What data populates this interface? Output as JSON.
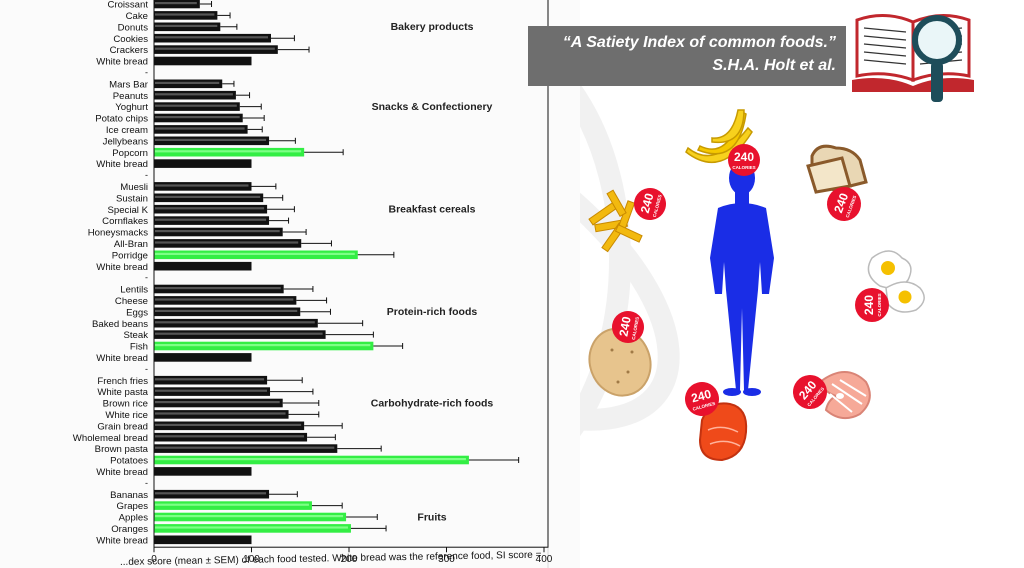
{
  "citation": {
    "title": "“A Satiety Index of common foods.”",
    "authors": "S.H.A. Holt et al."
  },
  "caption_fragment": "...dex score (mean ± SEM) of each food tested. White bread was the reference food, SI score =",
  "calorie_badge": {
    "number": "240",
    "unit": "CALORIES"
  },
  "icons": [
    "book-icon",
    "magnifier-icon",
    "human-silhouette-icon",
    "banana-icon",
    "bread-icon",
    "french-fries-icon",
    "egg-icon",
    "potato-icon",
    "salmon-icon",
    "steak-icon"
  ],
  "colors": {
    "highlight": "#33ee44",
    "bar": "#111111",
    "body": "#1a2de6",
    "badge": "#e8112d",
    "citation_bg": "#6e6e6e"
  },
  "chart_data": {
    "type": "bar",
    "orientation": "horizontal",
    "xlim": [
      0,
      400
    ],
    "xticks": [
      0,
      100,
      200,
      300,
      400
    ],
    "grid": false,
    "groups": [
      {
        "name": "Bakery products",
        "items": [
          {
            "label": "Croissant",
            "value": 47,
            "err": 12
          },
          {
            "label": "Cake",
            "value": 65,
            "err": 13
          },
          {
            "label": "Donuts",
            "value": 68,
            "err": 17
          },
          {
            "label": "Cookies",
            "value": 120,
            "err": 24
          },
          {
            "label": "Crackers",
            "value": 127,
            "err": 32
          },
          {
            "label": "White bread",
            "value": 100,
            "err": 0
          }
        ]
      },
      {
        "name": "Snacks & Confectionery",
        "items": [
          {
            "label": "Mars Bar",
            "value": 70,
            "err": 12
          },
          {
            "label": "Peanuts",
            "value": 84,
            "err": 14
          },
          {
            "label": "Yoghurt",
            "value": 88,
            "err": 22
          },
          {
            "label": "Potato chips",
            "value": 91,
            "err": 22
          },
          {
            "label": "Ice cream",
            "value": 96,
            "err": 15
          },
          {
            "label": "Jellybeans",
            "value": 118,
            "err": 27
          },
          {
            "label": "Popcorn",
            "value": 154,
            "err": 40,
            "highlight": true
          },
          {
            "label": "White bread",
            "value": 100,
            "err": 0
          }
        ]
      },
      {
        "name": "Breakfast cereals",
        "items": [
          {
            "label": "Muesli",
            "value": 100,
            "err": 25
          },
          {
            "label": "Sustain",
            "value": 112,
            "err": 20
          },
          {
            "label": "Special K",
            "value": 116,
            "err": 28
          },
          {
            "label": "Cornflakes",
            "value": 118,
            "err": 20
          },
          {
            "label": "Honeysmacks",
            "value": 132,
            "err": 24
          },
          {
            "label": "All-Bran",
            "value": 151,
            "err": 31
          },
          {
            "label": "Porridge",
            "value": 209,
            "err": 37,
            "highlight": true
          },
          {
            "label": "White bread",
            "value": 100,
            "err": 0
          }
        ]
      },
      {
        "name": "Protein-rich foods",
        "items": [
          {
            "label": "Lentils",
            "value": 133,
            "err": 30
          },
          {
            "label": "Cheese",
            "value": 146,
            "err": 31
          },
          {
            "label": "Eggs",
            "value": 150,
            "err": 31
          },
          {
            "label": "Baked beans",
            "value": 168,
            "err": 46
          },
          {
            "label": "Steak",
            "value": 176,
            "err": 49
          },
          {
            "label": "Fish",
            "value": 225,
            "err": 30,
            "highlight": true
          },
          {
            "label": "White bread",
            "value": 100,
            "err": 0
          }
        ]
      },
      {
        "name": "Carbohydrate-rich foods",
        "items": [
          {
            "label": "French fries",
            "value": 116,
            "err": 36
          },
          {
            "label": "White pasta",
            "value": 119,
            "err": 44
          },
          {
            "label": "Brown rice",
            "value": 132,
            "err": 37
          },
          {
            "label": "White rice",
            "value": 138,
            "err": 31
          },
          {
            "label": "Grain bread",
            "value": 154,
            "err": 39
          },
          {
            "label": "Wholemeal bread",
            "value": 157,
            "err": 29
          },
          {
            "label": "Brown pasta",
            "value": 188,
            "err": 45
          },
          {
            "label": "Potatoes",
            "value": 323,
            "err": 51,
            "highlight": true
          },
          {
            "label": "White bread",
            "value": 100,
            "err": 0
          }
        ]
      },
      {
        "name": "Fruits",
        "items": [
          {
            "label": "Bananas",
            "value": 118,
            "err": 29
          },
          {
            "label": "Grapes",
            "value": 162,
            "err": 31,
            "highlight": true
          },
          {
            "label": "Apples",
            "value": 197,
            "err": 32,
            "highlight": true
          },
          {
            "label": "Oranges",
            "value": 202,
            "err": 36,
            "highlight": true
          },
          {
            "label": "White bread",
            "value": 100,
            "err": 0
          }
        ]
      }
    ]
  }
}
